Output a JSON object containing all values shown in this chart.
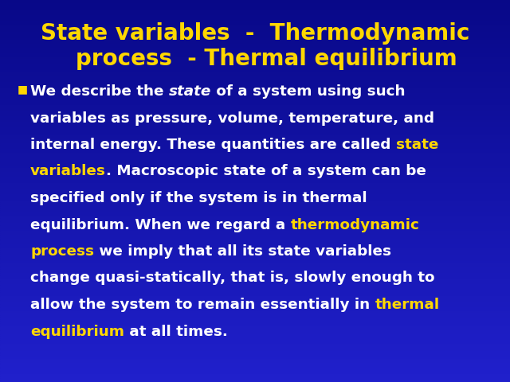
{
  "background_color": "#1414a0",
  "title_color": "#FFD700",
  "title_line1": "State variables  -  Thermodynamic",
  "title_line2": "   process  - Thermal equilibrium",
  "title_fontsize": 20,
  "white_color": "#FFFFFF",
  "yellow_color": "#FFD700",
  "body_fontsize": 13.2,
  "bullet_fontsize": 10,
  "gradient_top": "#2020cc",
  "gradient_bottom": "#0808800",
  "lines": [
    [
      [
        "We describe the ",
        "white",
        false
      ],
      [
        "state",
        "white",
        true
      ],
      [
        " of a system using such",
        "white",
        false
      ]
    ],
    [
      [
        "variables as pressure, volume, temperature, and",
        "white",
        false
      ]
    ],
    [
      [
        "internal energy. These quantities are called ",
        "white",
        false
      ],
      [
        "state",
        "yellow",
        false
      ]
    ],
    [
      [
        "variables",
        "yellow",
        false
      ],
      [
        ". Macroscopic state of a system can be",
        "white",
        false
      ]
    ],
    [
      [
        "specified only if the system is in thermal",
        "white",
        false
      ]
    ],
    [
      [
        "equilibrium. When we regard a ",
        "white",
        false
      ],
      [
        "thermodynamic",
        "yellow",
        false
      ]
    ],
    [
      [
        "process",
        "yellow",
        false
      ],
      [
        " we imply that all its state variables",
        "white",
        false
      ]
    ],
    [
      [
        "change quasi-statically, that is, slowly enough to",
        "white",
        false
      ]
    ],
    [
      [
        "allow the system to remain essentially in ",
        "white",
        false
      ],
      [
        "thermal",
        "yellow",
        false
      ]
    ],
    [
      [
        "equilibrium",
        "yellow",
        false
      ],
      [
        " at all times.",
        "white",
        false
      ]
    ]
  ]
}
